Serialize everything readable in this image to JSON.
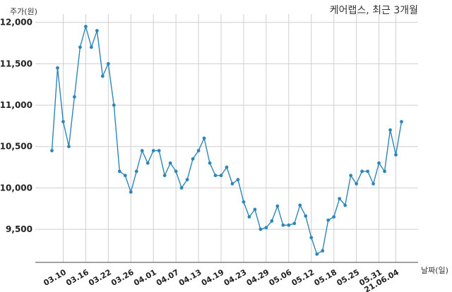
{
  "chart_data": {
    "type": "line",
    "title": "케어랩스, 최근 3개월",
    "xlabel": "날짜(일)",
    "ylabel": "주가(원)",
    "ylim": [
      9100,
      12100
    ],
    "yticks": [
      9500,
      10000,
      10500,
      11000,
      11500,
      12000
    ],
    "ytick_labels": [
      "9,500",
      "10,000",
      "10,500",
      "11,000",
      "11,500",
      "12,000"
    ],
    "xtick_labels": [
      "03.10",
      "03.16",
      "03.22",
      "03.26",
      "04.01",
      "04.07",
      "04.13",
      "04.19",
      "04.23",
      "04.29",
      "05.06",
      "05.12",
      "05.18",
      "05.25",
      "05.31",
      "21.06.04"
    ],
    "xtick_indices": [
      2,
      6,
      10,
      14,
      18,
      22,
      26,
      30,
      34,
      38,
      42,
      46,
      50,
      54,
      58,
      61
    ],
    "grid": true,
    "line_color": "#2e86b8",
    "series": [
      {
        "values": [
          10450,
          11450,
          10800,
          10500,
          11100,
          11700,
          11950,
          11700,
          11900,
          11350,
          11500,
          11000,
          10200,
          10150,
          9950,
          10200,
          10450,
          10300,
          10450,
          10450,
          10150,
          10300,
          10200,
          10000,
          10100,
          10350,
          10450,
          10600,
          10300,
          10150,
          10150,
          10250,
          10050,
          10100,
          9830,
          9650,
          9740,
          9500,
          9520,
          9600,
          9780,
          9550,
          9550,
          9570,
          9790,
          9660,
          9400,
          9200,
          9240,
          9610,
          9650,
          9870,
          9790,
          10150,
          10050,
          10200,
          10200,
          10050,
          10300,
          10200,
          10700,
          10400,
          10800
        ]
      }
    ]
  }
}
